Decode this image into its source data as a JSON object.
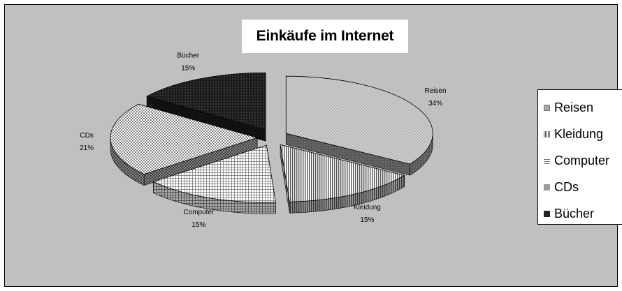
{
  "chart_data": {
    "type": "pie",
    "title": "Einkäufe im Internet",
    "slices": [
      {
        "name": "Reisen",
        "value": 34,
        "label": "34%",
        "color": "#a8a8a8",
        "pattern": "dots"
      },
      {
        "name": "Kleidung",
        "value": 15,
        "label": "15%",
        "color": "#8a8a8a",
        "pattern": "vlines"
      },
      {
        "name": "Computer",
        "value": 15,
        "label": "15%",
        "color": "#bdbdbd",
        "pattern": "grid"
      },
      {
        "name": "CDs",
        "value": 21,
        "label": "21%",
        "color": "#9c9c9c",
        "pattern": "checker"
      },
      {
        "name": "Bücher",
        "value": 15,
        "label": "15%",
        "color": "#222222",
        "pattern": "dark"
      }
    ],
    "legend_position": "right",
    "exploded": true,
    "style": "3d"
  },
  "colors": {
    "plot_background": "#c0c0c0",
    "chart_border": "#000000"
  }
}
